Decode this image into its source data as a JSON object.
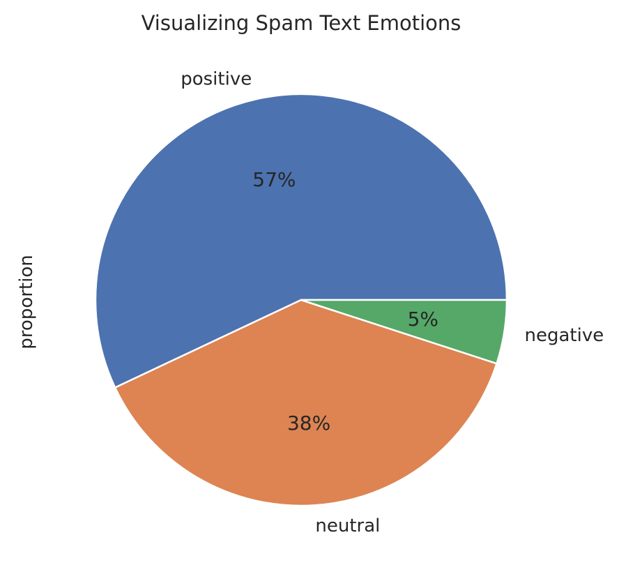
{
  "chart_data": {
    "type": "pie",
    "title": "Visualizing Spam Text Emotions",
    "ylabel": "proportion",
    "categories": [
      "positive",
      "neutral",
      "negative"
    ],
    "values": [
      57,
      38,
      5
    ],
    "percent_labels": [
      "57%",
      "38%",
      "5%"
    ],
    "colors": [
      "#4c72b0",
      "#dd8452",
      "#55a868"
    ],
    "start_angle": 0,
    "direction": "counterclockwise",
    "slice_edge_color": "#ffffff"
  }
}
